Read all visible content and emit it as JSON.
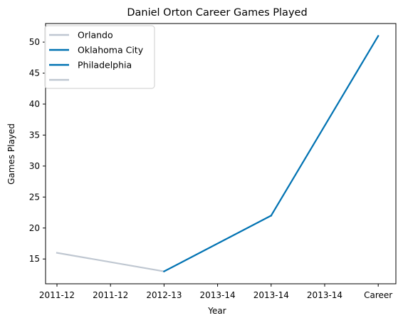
{
  "chart_data": {
    "type": "line",
    "title": "Daniel Orton Career Games Played",
    "xlabel": "Year",
    "ylabel": "Games Played",
    "categories": [
      "2011-12",
      "2011-12",
      "2012-13",
      "2013-14",
      "2013-14",
      "2013-14",
      "Career"
    ],
    "ylim": [
      11,
      53
    ],
    "yticks": [
      15,
      20,
      25,
      30,
      35,
      40,
      45,
      50
    ],
    "grid": false,
    "legend_position": "top-left",
    "series": [
      {
        "name": "Orlando",
        "color": "#bfc7d1",
        "points": [
          {
            "x_index": 0,
            "y": 16
          },
          {
            "x_index": 2,
            "y": 13
          }
        ]
      },
      {
        "name": "Oklahoma City",
        "color": "#0072b2",
        "points": [
          {
            "x_index": 2,
            "y": 13
          },
          {
            "x_index": 4,
            "y": 22
          }
        ]
      },
      {
        "name": "Philadelphia",
        "color": "#0072b2",
        "points": [
          {
            "x_index": 4,
            "y": 22
          },
          {
            "x_index": 6,
            "y": 51
          }
        ]
      },
      {
        "name": "",
        "color": "#bfc7d1",
        "points": []
      }
    ]
  }
}
